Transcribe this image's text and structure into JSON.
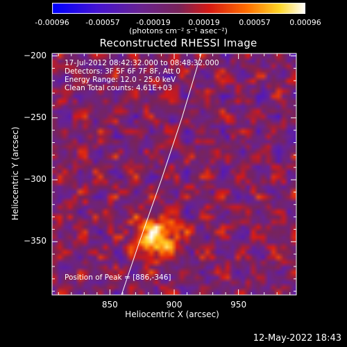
{
  "colorbar": {
    "tick_labels": [
      "-0.00096",
      "-0.00057",
      "-0.00019",
      "0.00019",
      "0.00057",
      "0.00096"
    ],
    "units": "(photons cm⁻² s⁻¹ asec⁻²)"
  },
  "chart_data": {
    "type": "heatmap",
    "title": "Reconstructed RHESSI Image",
    "xlabel": "Heliocentric X (arcsec)",
    "ylabel": "Heliocentric Y (arcsec)",
    "xlim": [
      805,
      995
    ],
    "ylim": [
      -393,
      -198
    ],
    "x_ticks": [
      "850",
      "900",
      "950"
    ],
    "y_ticks": [
      "-200",
      "-250",
      "-300",
      "-350"
    ],
    "value_range": [
      -0.00096,
      0.00096
    ],
    "peak": [
      886,
      -346
    ],
    "limb_curve": [
      [
        859,
        -393
      ],
      [
        873,
        -350
      ],
      [
        890,
        -300
      ],
      [
        906,
        -250
      ],
      [
        921,
        -198
      ]
    ],
    "annotations": [
      "17-Jul-2012 08:42:32.000 to 08:48:32.000",
      "Detectors: 3F 5F 6F 7F 8F, Att 0",
      "Energy Range: 12.0 - 25.0 keV",
      "Clean     Total counts: 4.61E+03",
      "Position of Peak = [886,-346]"
    ]
  },
  "timestamp": "12-May-2022 18:43"
}
